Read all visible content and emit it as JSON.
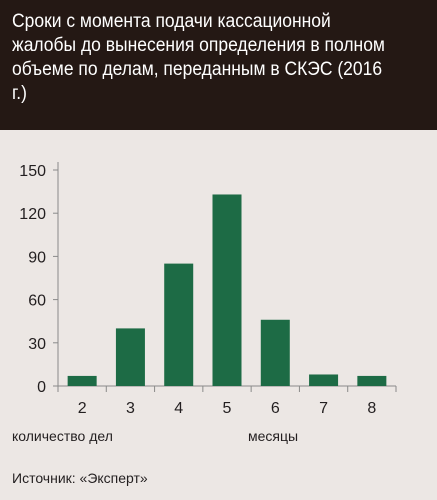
{
  "chart_data": {
    "type": "bar",
    "title": "Сроки с момента подачи кассационной жалобы до вынесения определения в полном объеме по делам, переданным в СКЭС (2016 г.)",
    "categories": [
      "2",
      "3",
      "4",
      "5",
      "6",
      "7",
      "8"
    ],
    "values": [
      7,
      40,
      85,
      133,
      46,
      8,
      7
    ],
    "ylim": [
      0,
      150
    ],
    "yticks": [
      0,
      30,
      60,
      90,
      120,
      150
    ],
    "ylabel": "количество дел",
    "xlabel": "месяцы",
    "grid": false,
    "bar_color": "#1d6b45"
  },
  "source": "Источник: «Эксперт»",
  "colors": {
    "header_bg": "#241814",
    "background": "#ece7e4",
    "bar": "#1d6b45",
    "axis": "#8a8a8a"
  }
}
